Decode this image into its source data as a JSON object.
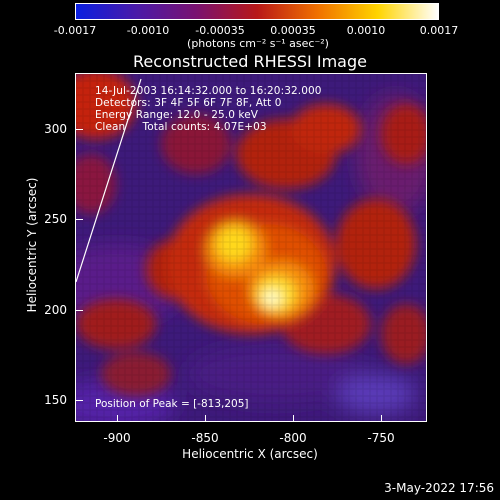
{
  "colorbar": {
    "tick_labels": [
      "-0.0017",
      "-0.0010",
      "-0.00035",
      "0.00035",
      "0.0010",
      "0.0017"
    ],
    "units": "(photons cm⁻² s⁻¹ asec⁻²)",
    "colors": [
      "#0a1fe0",
      "#4a1aa8",
      "#7a1270",
      "#b81818",
      "#f07000",
      "#ffd400",
      "#ffffff"
    ]
  },
  "title": "Reconstructed RHESSI Image",
  "info_lines": [
    "14-Jul-2003 16:14:32.000 to 16:20:32.000",
    "Detectors: 3F 4F 5F 6F 7F 8F, Att 0",
    "Energy Range: 12.0 - 25.0 keV",
    "Clean     Total counts: 4.07E+03"
  ],
  "peak_text": "Position of Peak = [-813,205]",
  "x_axis": {
    "label": "Heliocentric X (arcsec)",
    "ticks": [
      "-900",
      "-850",
      "-800",
      "-750"
    ]
  },
  "y_axis": {
    "label": "Heliocentric Y (arcsec)",
    "ticks": [
      "300",
      "250",
      "200",
      "150"
    ]
  },
  "timestamp": "3-May-2022 17:56"
}
